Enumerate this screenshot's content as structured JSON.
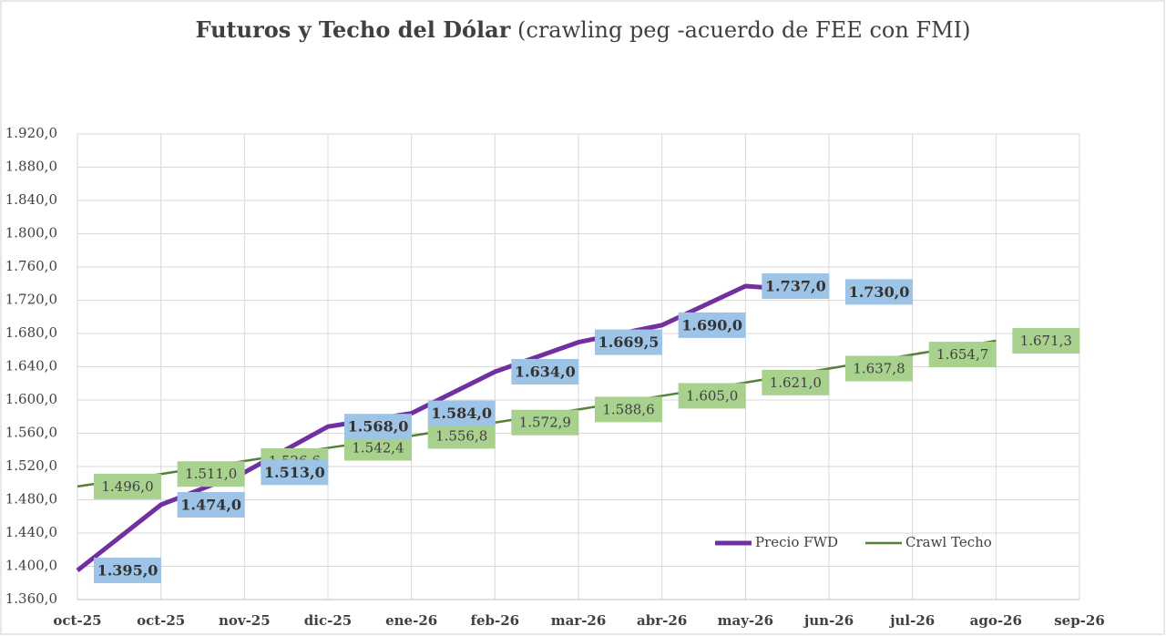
{
  "chart_data": {
    "type": "line",
    "title": "Futuros y Techo del Dólar",
    "subtitle": "(crawling peg -acuerdo de FEE con FMI)",
    "categories": [
      "oct-25",
      "oct-25",
      "nov-25",
      "dic-25",
      "ene-26",
      "feb-26",
      "mar-26",
      "abr-26",
      "may-26",
      "jun-26",
      "jul-26",
      "ago-26",
      "sep-26"
    ],
    "series": [
      {
        "name": "Precio FWD",
        "color": "#7030a0",
        "label_bg": "#9dc3e6",
        "values": [
          1395,
          1474,
          1513,
          1568,
          1584,
          1634,
          1669.5,
          1690,
          1737,
          1730,
          null,
          null,
          null
        ],
        "value_labels": [
          "1.395,0",
          "1.474,0",
          "1.513,0",
          "1.568,0",
          "1.584,0",
          "1.634,0",
          "1.669,5",
          "1.690,0",
          "1.737,0",
          "1.730,0",
          null,
          null,
          null
        ]
      },
      {
        "name": "Crawl Techo",
        "color": "#548235",
        "label_bg": "#a9d18e",
        "values": [
          1496,
          1511,
          1526.6,
          1542.4,
          1556.8,
          1572.9,
          1588.6,
          1605,
          1621,
          1637.8,
          1654.7,
          1671.3,
          null
        ],
        "value_labels": [
          "1.496,0",
          "1.511,0",
          "1.526,6",
          "1.542,4",
          "1.556,8",
          "1.572,9",
          "1.588,6",
          "1.605,0",
          "1.621,0",
          "1.637,8",
          "1.654,7",
          "1.671,3",
          null
        ]
      }
    ],
    "ylim": [
      1360,
      1920
    ],
    "yticks": [
      {
        "value": 1360,
        "label": "1.360,0"
      },
      {
        "value": 1400,
        "label": "1.400,0"
      },
      {
        "value": 1440,
        "label": "1.440,0"
      },
      {
        "value": 1480,
        "label": "1.480,0"
      },
      {
        "value": 1520,
        "label": "1.520,0"
      },
      {
        "value": 1560,
        "label": "1.560,0"
      },
      {
        "value": 1600,
        "label": "1.600,0"
      },
      {
        "value": 1640,
        "label": "1.640,0"
      },
      {
        "value": 1680,
        "label": "1.680,0"
      },
      {
        "value": 1720,
        "label": "1.720,0"
      },
      {
        "value": 1760,
        "label": "1.760,0"
      },
      {
        "value": 1800,
        "label": "1.800,0"
      },
      {
        "value": 1840,
        "label": "1.840,0"
      },
      {
        "value": 1880,
        "label": "1.880,0"
      },
      {
        "value": 1920,
        "label": "1.920,0"
      }
    ],
    "grid": true,
    "legend": "lower right"
  }
}
